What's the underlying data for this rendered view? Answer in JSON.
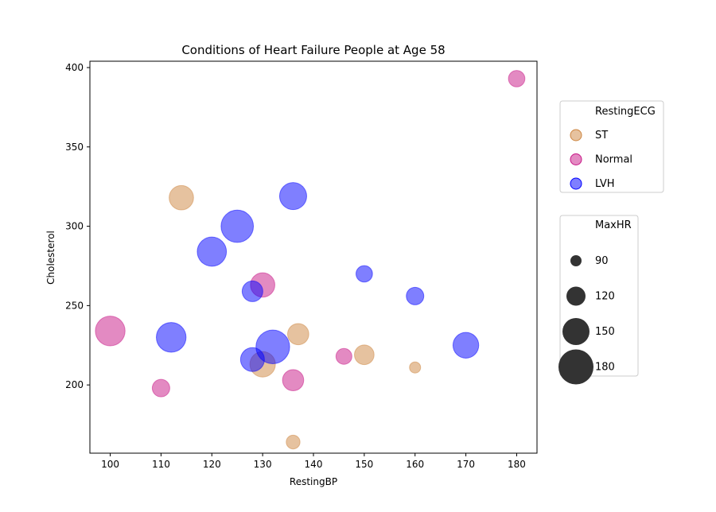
{
  "chart_data": {
    "type": "scatter",
    "title": "Conditions of Heart Failure People at Age 58",
    "xlabel": "RestingBP",
    "ylabel": "Cholesterol",
    "xlim": [
      96,
      184
    ],
    "ylim": [
      157,
      404
    ],
    "xticks": [
      100,
      110,
      120,
      130,
      140,
      150,
      160,
      170,
      180
    ],
    "yticks": [
      200,
      250,
      300,
      350,
      400
    ],
    "grid": false,
    "color_legend": {
      "title": "RestingECG",
      "placement": "right-upper",
      "entries": [
        {
          "label": "ST",
          "color": "#cd853f"
        },
        {
          "label": "Normal",
          "color": "#c71585"
        },
        {
          "label": "LVH",
          "color": "#0000ff"
        }
      ]
    },
    "size_legend": {
      "title": "MaxHR",
      "placement": "right-lower",
      "entries": [
        {
          "label": "90",
          "value": 90
        },
        {
          "label": "120",
          "value": 120
        },
        {
          "label": "150",
          "value": 150
        },
        {
          "label": "180",
          "value": 180
        }
      ]
    },
    "series": [
      {
        "name": "ST",
        "color": "#cd853f",
        "points": [
          {
            "x": 114,
            "y": 318,
            "size": 140
          },
          {
            "x": 130,
            "y": 213,
            "size": 144
          },
          {
            "x": 137,
            "y": 232,
            "size": 128
          },
          {
            "x": 150,
            "y": 219,
            "size": 122
          },
          {
            "x": 136,
            "y": 164,
            "size": 100
          },
          {
            "x": 160,
            "y": 211,
            "size": 90
          }
        ]
      },
      {
        "name": "Normal",
        "color": "#c71585",
        "points": [
          {
            "x": 180,
            "y": 393,
            "size": 110
          },
          {
            "x": 130,
            "y": 263,
            "size": 140
          },
          {
            "x": 100,
            "y": 234,
            "size": 160
          },
          {
            "x": 146,
            "y": 218,
            "size": 108
          },
          {
            "x": 136,
            "y": 203,
            "size": 128
          },
          {
            "x": 110,
            "y": 198,
            "size": 114
          }
        ]
      },
      {
        "name": "LVH",
        "color": "#0000ff",
        "points": [
          {
            "x": 136,
            "y": 319,
            "size": 150
          },
          {
            "x": 125,
            "y": 300,
            "size": 170
          },
          {
            "x": 120,
            "y": 284,
            "size": 158
          },
          {
            "x": 150,
            "y": 270,
            "size": 110
          },
          {
            "x": 128,
            "y": 259,
            "size": 126
          },
          {
            "x": 160,
            "y": 256,
            "size": 114
          },
          {
            "x": 112,
            "y": 230,
            "size": 160
          },
          {
            "x": 132,
            "y": 224,
            "size": 175
          },
          {
            "x": 128,
            "y": 216,
            "size": 138
          },
          {
            "x": 170,
            "y": 225,
            "size": 145
          }
        ]
      }
    ]
  }
}
